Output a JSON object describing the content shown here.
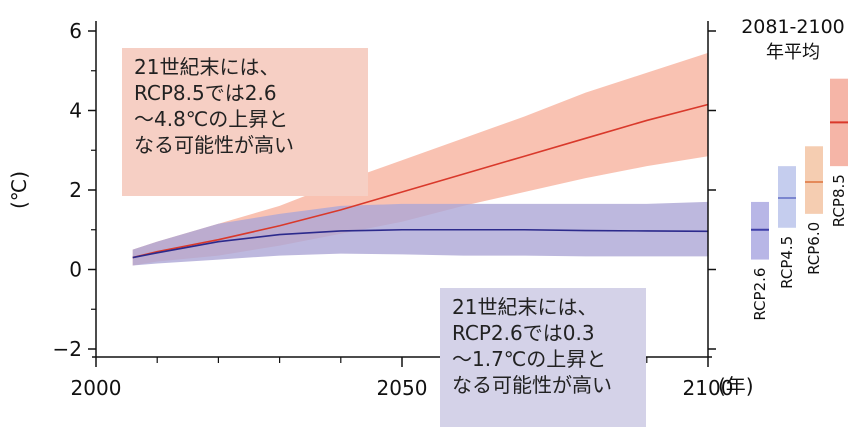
{
  "chart_data": {
    "type": "area",
    "xlabel": "(年)",
    "ylabel": "(℃)",
    "xlim": [
      2006,
      2100
    ],
    "ylim": [
      -2,
      6
    ],
    "xticks": [
      2000,
      2050,
      2100
    ],
    "yticks": [
      -2,
      0,
      2,
      4,
      6
    ],
    "grid": false,
    "series": [
      {
        "name": "RCP8.5",
        "color": "#d9392b",
        "band_color": "#f7b39f",
        "x": [
          2006,
          2010,
          2020,
          2030,
          2040,
          2050,
          2060,
          2070,
          2080,
          2090,
          2100
        ],
        "mean": [
          0.3,
          0.45,
          0.75,
          1.1,
          1.5,
          1.95,
          2.4,
          2.85,
          3.3,
          3.75,
          4.15
        ],
        "lower": [
          0.1,
          0.2,
          0.35,
          0.6,
          0.9,
          1.2,
          1.6,
          1.95,
          2.3,
          2.6,
          2.85
        ],
        "upper": [
          0.5,
          0.7,
          1.15,
          1.6,
          2.2,
          2.75,
          3.3,
          3.85,
          4.45,
          4.95,
          5.45
        ]
      },
      {
        "name": "RCP2.6",
        "color": "#2c2a8c",
        "band_color": "#aca6d6",
        "x": [
          2006,
          2010,
          2020,
          2030,
          2040,
          2050,
          2060,
          2070,
          2080,
          2090,
          2100
        ],
        "mean": [
          0.3,
          0.42,
          0.7,
          0.88,
          0.97,
          1.0,
          1.0,
          1.0,
          0.98,
          0.97,
          0.96
        ],
        "lower": [
          0.1,
          0.15,
          0.25,
          0.35,
          0.4,
          0.38,
          0.35,
          0.35,
          0.33,
          0.33,
          0.33
        ],
        "upper": [
          0.5,
          0.7,
          1.15,
          1.4,
          1.6,
          1.65,
          1.65,
          1.65,
          1.65,
          1.65,
          1.7
        ]
      }
    ],
    "side_panel": {
      "title_line1": "2081-2100",
      "title_line2": "年平均",
      "bars": [
        {
          "label": "RCP2.6",
          "low": 0.25,
          "mean": 1.0,
          "high": 1.7,
          "color": "#b8b6e6",
          "line": "#3f3fa8"
        },
        {
          "label": "RCP4.5",
          "low": 1.05,
          "mean": 1.8,
          "high": 2.6,
          "color": "#c5cdee",
          "line": "#7b86cf"
        },
        {
          "label": "RCP6.0",
          "low": 1.4,
          "mean": 2.2,
          "high": 3.1,
          "color": "#f5cdb1",
          "line": "#e48a5a"
        },
        {
          "label": "RCP8.5",
          "low": 2.6,
          "mean": 3.7,
          "high": 4.8,
          "color": "#f5b5a7",
          "line": "#d9392b"
        }
      ]
    },
    "annotations": [
      {
        "id": "rcp85",
        "lines": [
          "21世紀末には、",
          "RCP8.5では2.6",
          "～4.8℃の上昇と",
          "なる可能性が高い"
        ]
      },
      {
        "id": "rcp26",
        "lines": [
          "21世紀末には、",
          "RCP2.6では0.3",
          "～1.7℃の上昇と",
          "なる可能性が高い"
        ]
      }
    ]
  }
}
